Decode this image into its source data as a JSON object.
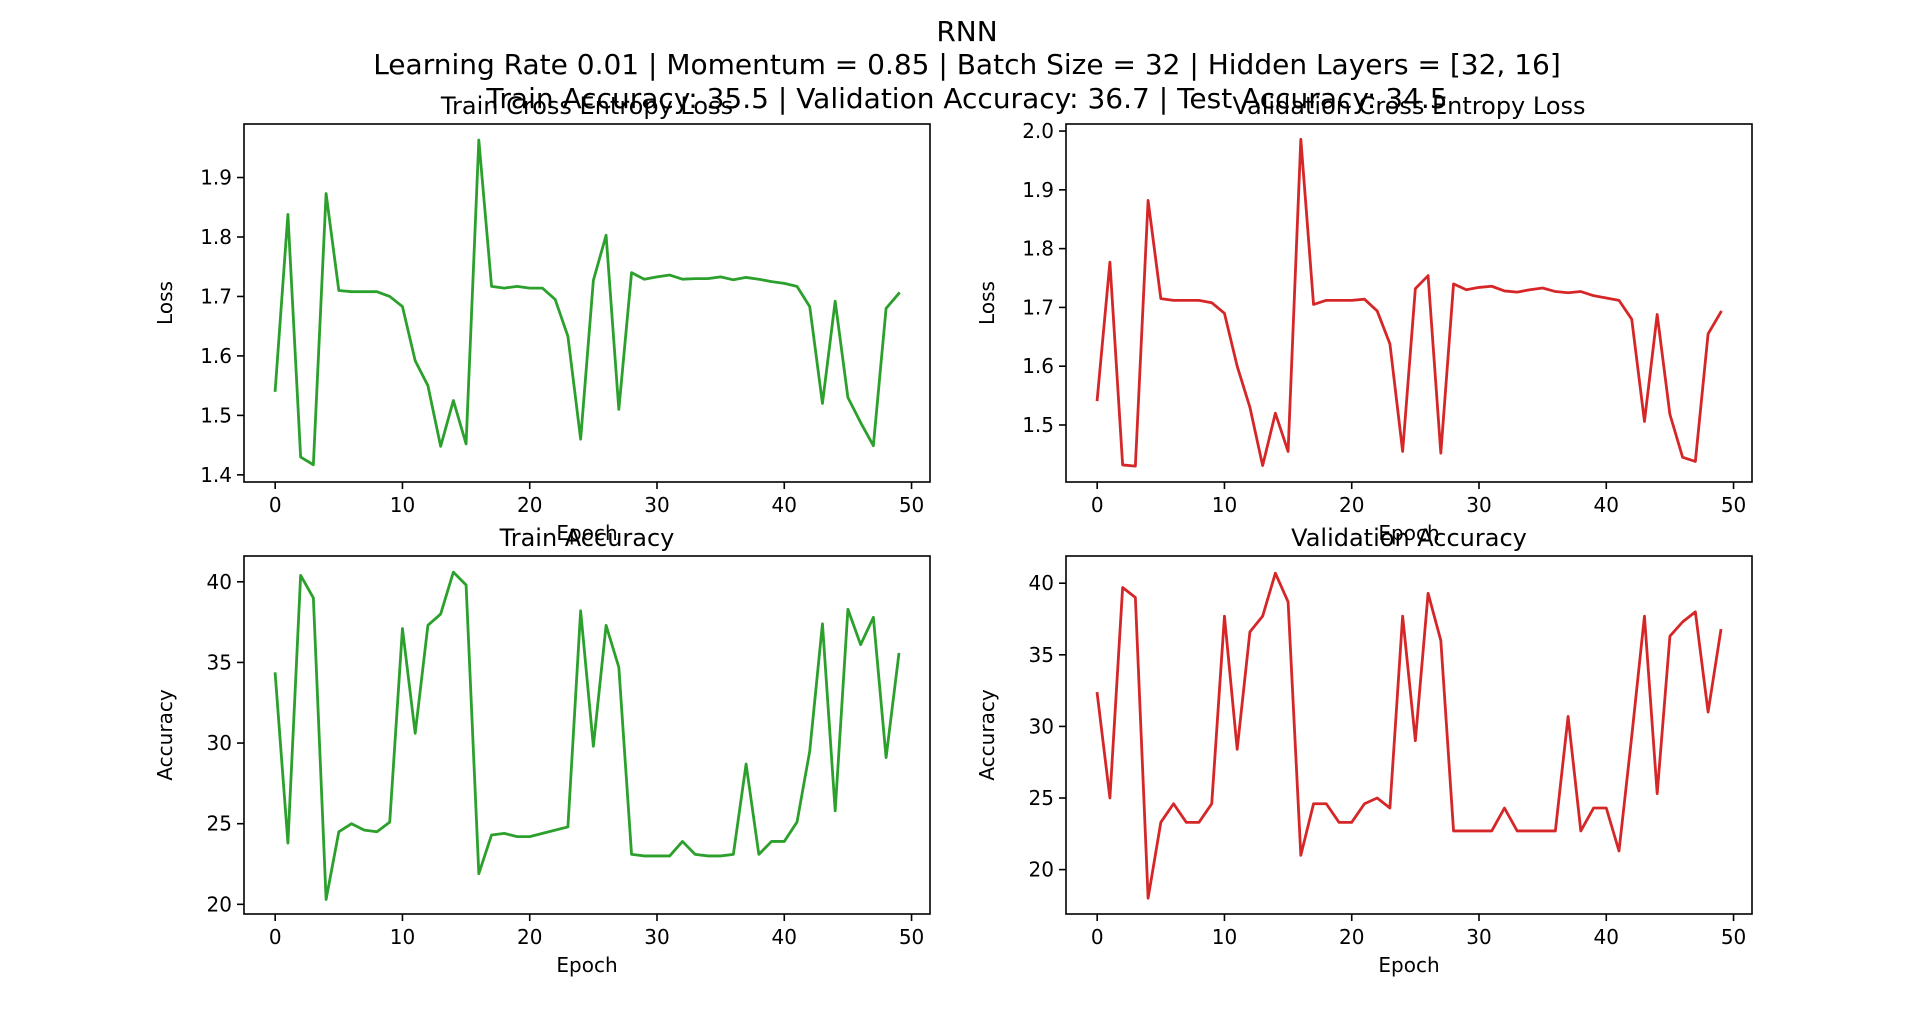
{
  "figure": {
    "title_lines": [
      "RNN",
      "Learning Rate 0.01 | Momentum = 0.85 | Batch Size  = 32 | Hidden Layers = [32, 16]",
      "Train Accuracy: 35.5 | Validation Accuracy: 36.7 | Test Accuracy: 34.5"
    ]
  },
  "chart_data": [
    {
      "type": "line",
      "title": "Train Cross Entropy Loss",
      "xlabel": "Epoch",
      "ylabel": "Loss",
      "color": "#2ca02c",
      "xlim": [
        -2.45,
        51.45
      ],
      "ylim": [
        1.388,
        1.99
      ],
      "xticks": [
        0,
        10,
        20,
        30,
        40,
        50
      ],
      "yticks": [
        1.4,
        1.5,
        1.6,
        1.7,
        1.8,
        1.9
      ],
      "tick_decimals": 1,
      "grid": false,
      "x": [
        0,
        1,
        2,
        3,
        4,
        5,
        6,
        7,
        8,
        9,
        10,
        11,
        12,
        13,
        14,
        15,
        16,
        17,
        18,
        19,
        20,
        21,
        22,
        23,
        24,
        25,
        26,
        27,
        28,
        29,
        30,
        31,
        32,
        33,
        34,
        35,
        36,
        37,
        38,
        39,
        40,
        41,
        42,
        43,
        44,
        45,
        46,
        47,
        48,
        49
      ],
      "series": [
        {
          "values": [
            1.542,
            1.838,
            1.43,
            1.417,
            1.873,
            1.71,
            1.708,
            1.708,
            1.708,
            1.7,
            1.683,
            1.592,
            1.55,
            1.448,
            1.525,
            1.452,
            1.963,
            1.717,
            1.714,
            1.717,
            1.714,
            1.714,
            1.695,
            1.633,
            1.46,
            1.727,
            1.803,
            1.51,
            1.74,
            1.729,
            1.733,
            1.736,
            1.729,
            1.73,
            1.73,
            1.733,
            1.728,
            1.732,
            1.729,
            1.725,
            1.722,
            1.717,
            1.683,
            1.52,
            1.692,
            1.53,
            1.488,
            1.449,
            1.68,
            1.705
          ]
        }
      ]
    },
    {
      "type": "line",
      "title": "Validation Cross Entropy Loss",
      "xlabel": "Epoch",
      "ylabel": "Loss",
      "color": "#d62728",
      "xlim": [
        -2.45,
        51.45
      ],
      "ylim": [
        1.403,
        2.012
      ],
      "xticks": [
        0,
        10,
        20,
        30,
        40,
        50
      ],
      "yticks": [
        1.5,
        1.6,
        1.7,
        1.8,
        1.9,
        2.0
      ],
      "tick_decimals": 1,
      "grid": false,
      "x": [
        0,
        1,
        2,
        3,
        4,
        5,
        6,
        7,
        8,
        9,
        10,
        11,
        12,
        13,
        14,
        15,
        16,
        17,
        18,
        19,
        20,
        21,
        22,
        23,
        24,
        25,
        26,
        27,
        28,
        29,
        30,
        31,
        32,
        33,
        34,
        35,
        36,
        37,
        38,
        39,
        40,
        41,
        42,
        43,
        44,
        45,
        46,
        47,
        48,
        49
      ],
      "series": [
        {
          "values": [
            1.543,
            1.777,
            1.432,
            1.43,
            1.882,
            1.715,
            1.712,
            1.712,
            1.712,
            1.708,
            1.69,
            1.6,
            1.53,
            1.431,
            1.52,
            1.455,
            1.986,
            1.705,
            1.712,
            1.712,
            1.712,
            1.714,
            1.694,
            1.638,
            1.455,
            1.732,
            1.754,
            1.452,
            1.74,
            1.73,
            1.734,
            1.736,
            1.728,
            1.726,
            1.73,
            1.733,
            1.727,
            1.725,
            1.727,
            1.72,
            1.716,
            1.712,
            1.68,
            1.506,
            1.688,
            1.518,
            1.445,
            1.438,
            1.655,
            1.692
          ]
        }
      ]
    },
    {
      "type": "line",
      "title": "Train Accuracy",
      "xlabel": "Epoch",
      "ylabel": "Accuracy",
      "color": "#2ca02c",
      "xlim": [
        -2.45,
        51.45
      ],
      "ylim": [
        19.4,
        41.6
      ],
      "xticks": [
        0,
        10,
        20,
        30,
        40,
        50
      ],
      "yticks": [
        20,
        25,
        30,
        35,
        40
      ],
      "tick_decimals": 0,
      "grid": false,
      "x": [
        0,
        1,
        2,
        3,
        4,
        5,
        6,
        7,
        8,
        9,
        10,
        11,
        12,
        13,
        14,
        15,
        16,
        17,
        18,
        19,
        20,
        21,
        22,
        23,
        24,
        25,
        26,
        27,
        28,
        29,
        30,
        31,
        32,
        33,
        34,
        35,
        36,
        37,
        38,
        39,
        40,
        41,
        42,
        43,
        44,
        45,
        46,
        47,
        48,
        49
      ],
      "series": [
        {
          "values": [
            34.3,
            23.8,
            40.4,
            39.0,
            20.3,
            24.5,
            25.0,
            24.6,
            24.5,
            25.1,
            37.1,
            30.6,
            37.3,
            38.0,
            40.6,
            39.8,
            21.9,
            24.3,
            24.4,
            24.2,
            24.2,
            24.4,
            24.6,
            24.8,
            38.2,
            29.8,
            37.3,
            34.7,
            23.1,
            23.0,
            23.0,
            23.0,
            23.9,
            23.1,
            23.0,
            23.0,
            23.1,
            28.7,
            23.1,
            23.9,
            23.9,
            25.1,
            29.5,
            37.4,
            25.8,
            38.3,
            36.1,
            37.8,
            29.1,
            35.5
          ]
        }
      ]
    },
    {
      "type": "line",
      "title": "Validation Accuracy",
      "xlabel": "Epoch",
      "ylabel": "Accuracy",
      "color": "#d62728",
      "xlim": [
        -2.45,
        51.45
      ],
      "ylim": [
        16.9,
        41.9
      ],
      "xticks": [
        0,
        10,
        20,
        30,
        40,
        50
      ],
      "yticks": [
        20,
        25,
        30,
        35,
        40
      ],
      "tick_decimals": 0,
      "grid": false,
      "x": [
        0,
        1,
        2,
        3,
        4,
        5,
        6,
        7,
        8,
        9,
        10,
        11,
        12,
        13,
        14,
        15,
        16,
        17,
        18,
        19,
        20,
        21,
        22,
        23,
        24,
        25,
        26,
        27,
        28,
        29,
        30,
        31,
        32,
        33,
        34,
        35,
        36,
        37,
        38,
        39,
        40,
        41,
        42,
        43,
        44,
        45,
        46,
        47,
        48,
        49
      ],
      "series": [
        {
          "values": [
            32.3,
            25.0,
            39.7,
            39.0,
            18.0,
            23.3,
            24.6,
            23.3,
            23.3,
            24.6,
            37.7,
            28.4,
            36.6,
            37.7,
            40.7,
            38.7,
            21.0,
            24.6,
            24.6,
            23.3,
            23.3,
            24.6,
            25.0,
            24.3,
            37.7,
            29.0,
            39.3,
            36.0,
            22.7,
            22.7,
            22.7,
            22.7,
            24.3,
            22.7,
            22.7,
            22.7,
            22.7,
            30.7,
            22.7,
            24.3,
            24.3,
            21.3,
            29.3,
            37.7,
            25.3,
            36.3,
            37.3,
            38.0,
            31.0,
            36.7
          ]
        }
      ]
    }
  ]
}
